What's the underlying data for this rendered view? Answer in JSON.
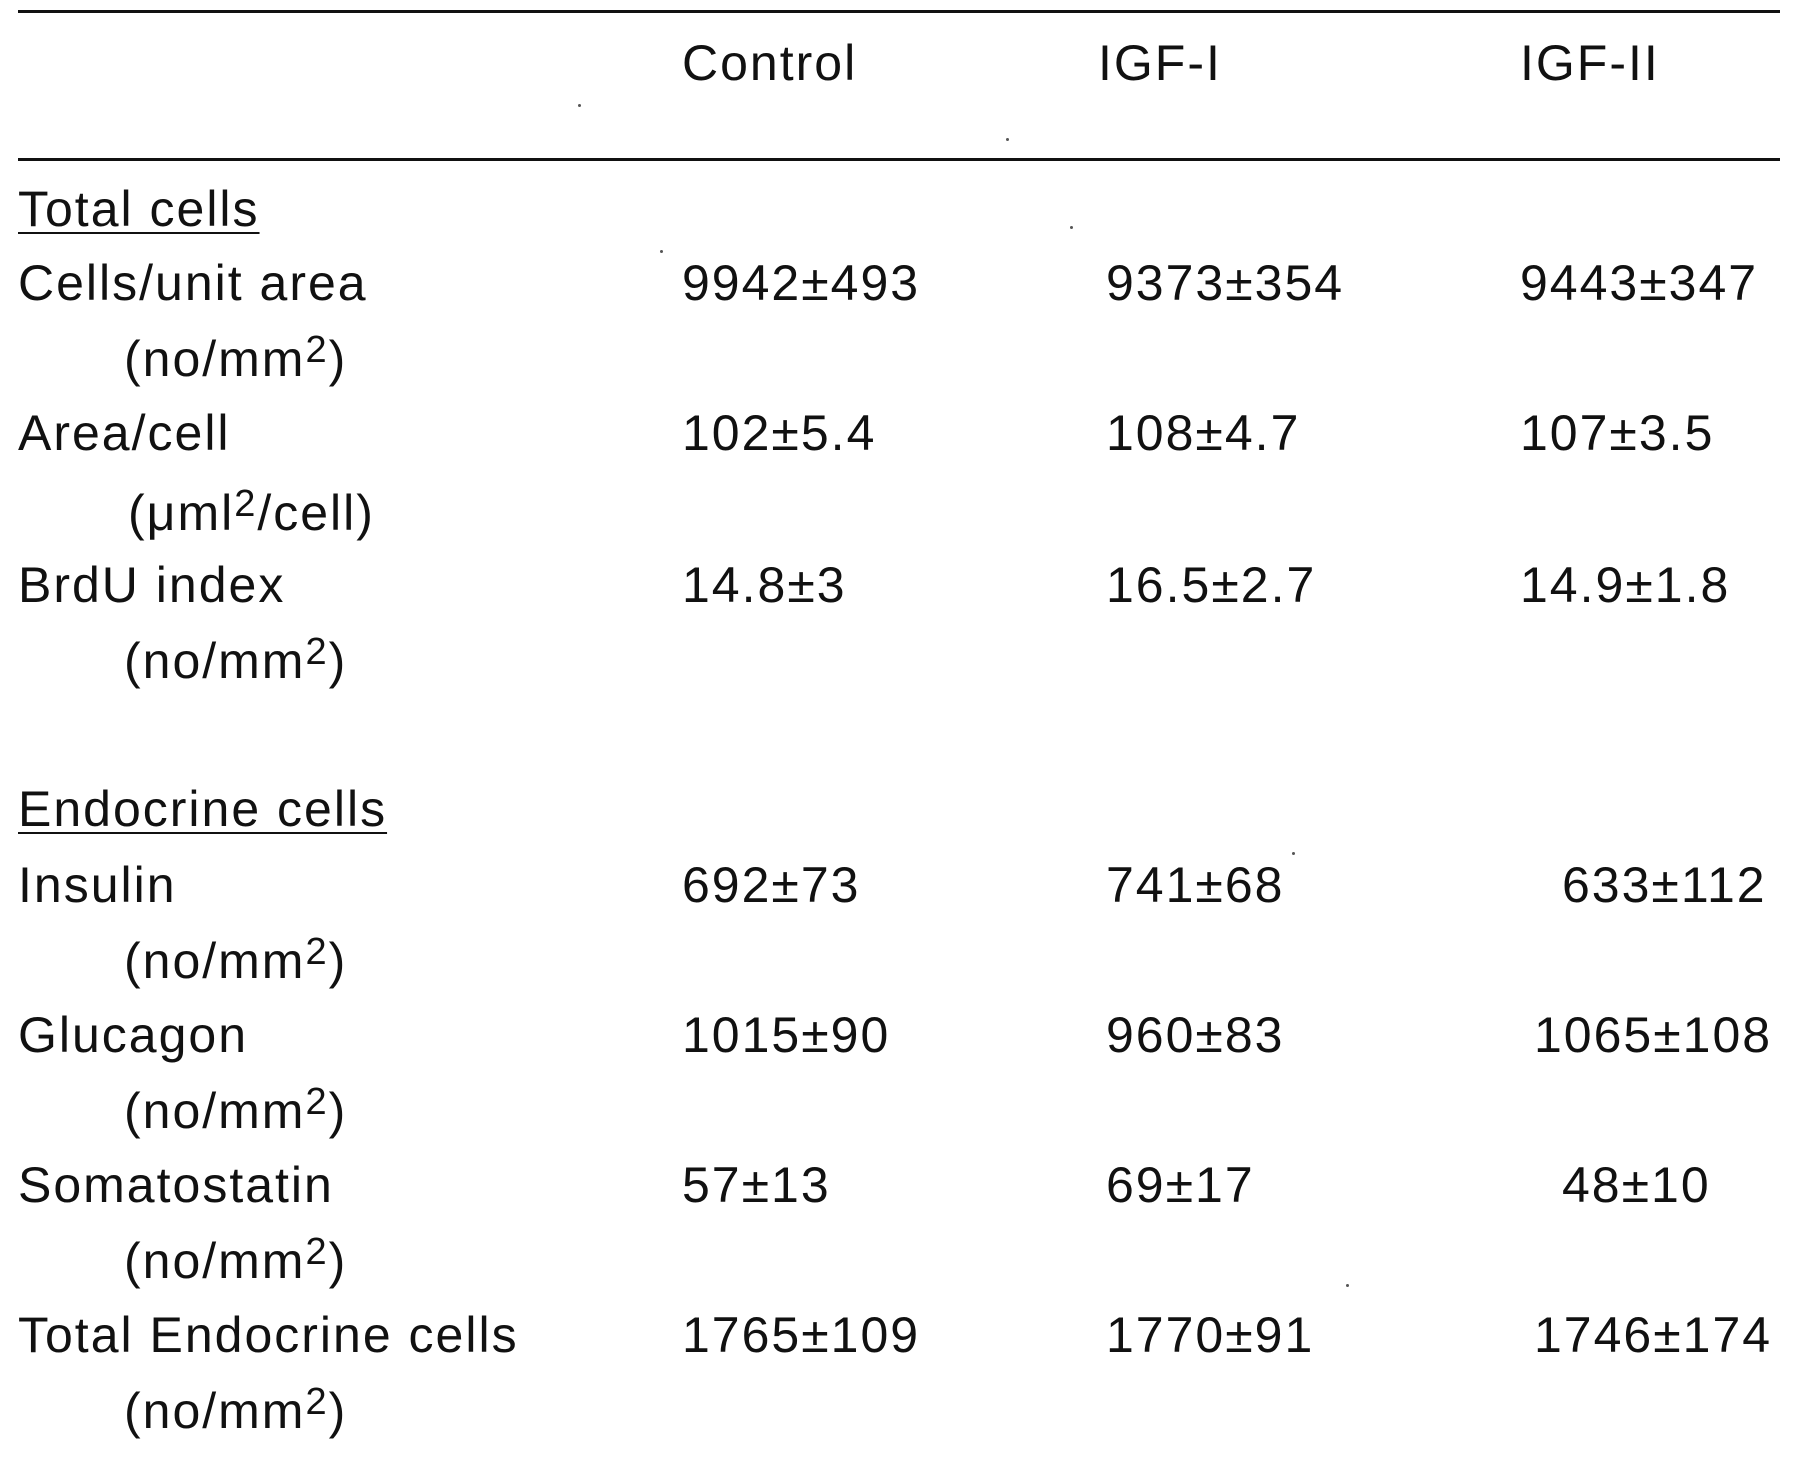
{
  "header": {
    "columns": [
      "Control",
      "IGF-I",
      "IGF-II"
    ]
  },
  "sections": [
    {
      "title": "Total  cells",
      "rows": [
        {
          "label": "Cells/unit  area",
          "unit_pre": "(no/mm",
          "unit_sup": "2",
          "unit_post": ")",
          "values": [
            "9942±493",
            "9373±354",
            "9443±347"
          ]
        },
        {
          "label": "Area/cell",
          "unit_pre": "(μml",
          "unit_sup": "2",
          "unit_post": "/cell)",
          "values": [
            "102±5.4",
            "108±4.7",
            "107±3.5"
          ]
        },
        {
          "label": "BrdU  index",
          "unit_pre": "(no/mm",
          "unit_sup": "2",
          "unit_post": ")",
          "values": [
            "14.8±3",
            "16.5±2.7",
            "14.9±1.8"
          ]
        }
      ]
    },
    {
      "title": "Endocrine  cells",
      "rows": [
        {
          "label": "Insulin",
          "unit_pre": "(no/mm",
          "unit_sup": "2",
          "unit_post": ")",
          "values": [
            "692±73",
            "741±68",
            "633±112"
          ]
        },
        {
          "label": "Glucagon",
          "unit_pre": "(no/mm",
          "unit_sup": "2",
          "unit_post": ")",
          "values": [
            "1015±90",
            "960±83",
            "1065±108"
          ]
        },
        {
          "label": "Somatostatin",
          "unit_pre": "(no/mm",
          "unit_sup": "2",
          "unit_post": ")",
          "values": [
            "57±13",
            "69±17",
            "48±10"
          ]
        },
        {
          "label": "Total  Endocrine  cells",
          "unit_pre": "(no/mm",
          "unit_sup": "2",
          "unit_post": ")",
          "values": [
            "1765±109",
            "1770±91",
            "1746±174"
          ]
        }
      ]
    }
  ]
}
